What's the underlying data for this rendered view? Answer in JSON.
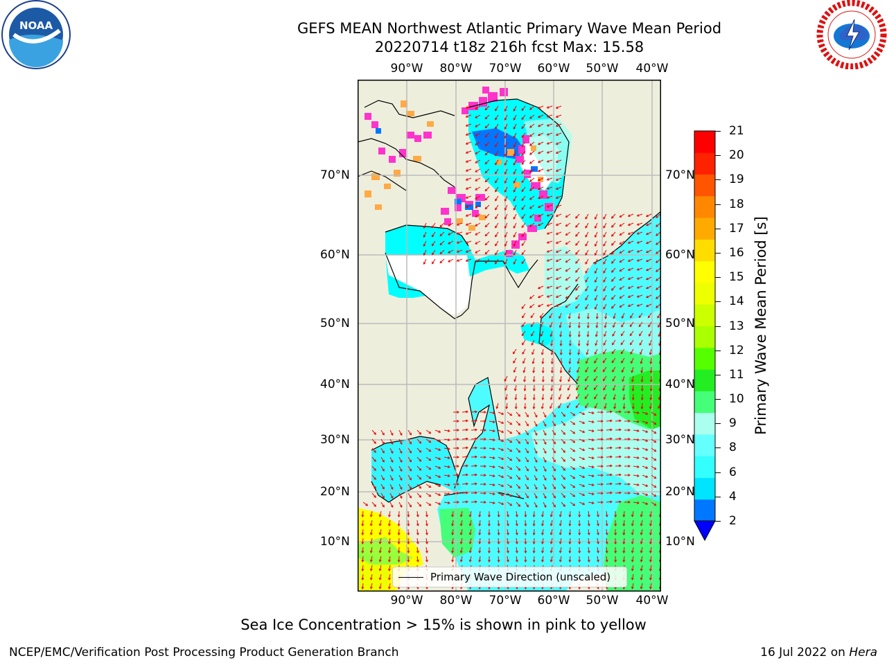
{
  "header": {
    "title_line1": "GEFS MEAN Northwest Atlantic Primary Wave Mean Period",
    "title_line2": "20220714 t18z 216h fcst   Max: 15.58"
  },
  "logos": {
    "left": "NOAA",
    "right": "NATIONAL WEATHER SERVICE"
  },
  "map": {
    "lon_labels": [
      "90°W",
      "80°W",
      "70°W",
      "60°W",
      "50°W",
      "40°W"
    ],
    "lat_labels": [
      "70°N",
      "60°N",
      "50°N",
      "40°N",
      "30°N",
      "20°N",
      "10°N"
    ],
    "legend_label": "Primary Wave Direction (unscaled)",
    "colors": {
      "land": "#eeeedd",
      "ocean_low": "#00ffff",
      "ocean_mid": "#4dfcff",
      "ice": "#ff33cc",
      "arrow": "#ff0000"
    }
  },
  "colorbar": {
    "label": "Primary Wave Mean Period [s]",
    "ticks": [
      "21",
      "20",
      "19",
      "18",
      "17",
      "16",
      "15",
      "14",
      "13",
      "12",
      "11",
      "10",
      "9",
      "8",
      "6",
      "4",
      "2"
    ],
    "colors": [
      "#0000ff",
      "#0077ff",
      "#00e5ff",
      "#33ffff",
      "#66ffff",
      "#aaffee",
      "#44ff77",
      "#22ee22",
      "#55ff00",
      "#aaff00",
      "#ccff00",
      "#eeff00",
      "#ffff00",
      "#ffdd00",
      "#ffaa00",
      "#ff8800",
      "#ff5500",
      "#ff2200",
      "#ff0000"
    ]
  },
  "caption": "Sea Ice Concentration > 15% is shown in pink to yellow",
  "footer": {
    "left": "NCEP/EMC/Verification Post Processing Product Generation Branch",
    "right_date": "16 Jul 2022 on ",
    "right_host": "Hera"
  }
}
